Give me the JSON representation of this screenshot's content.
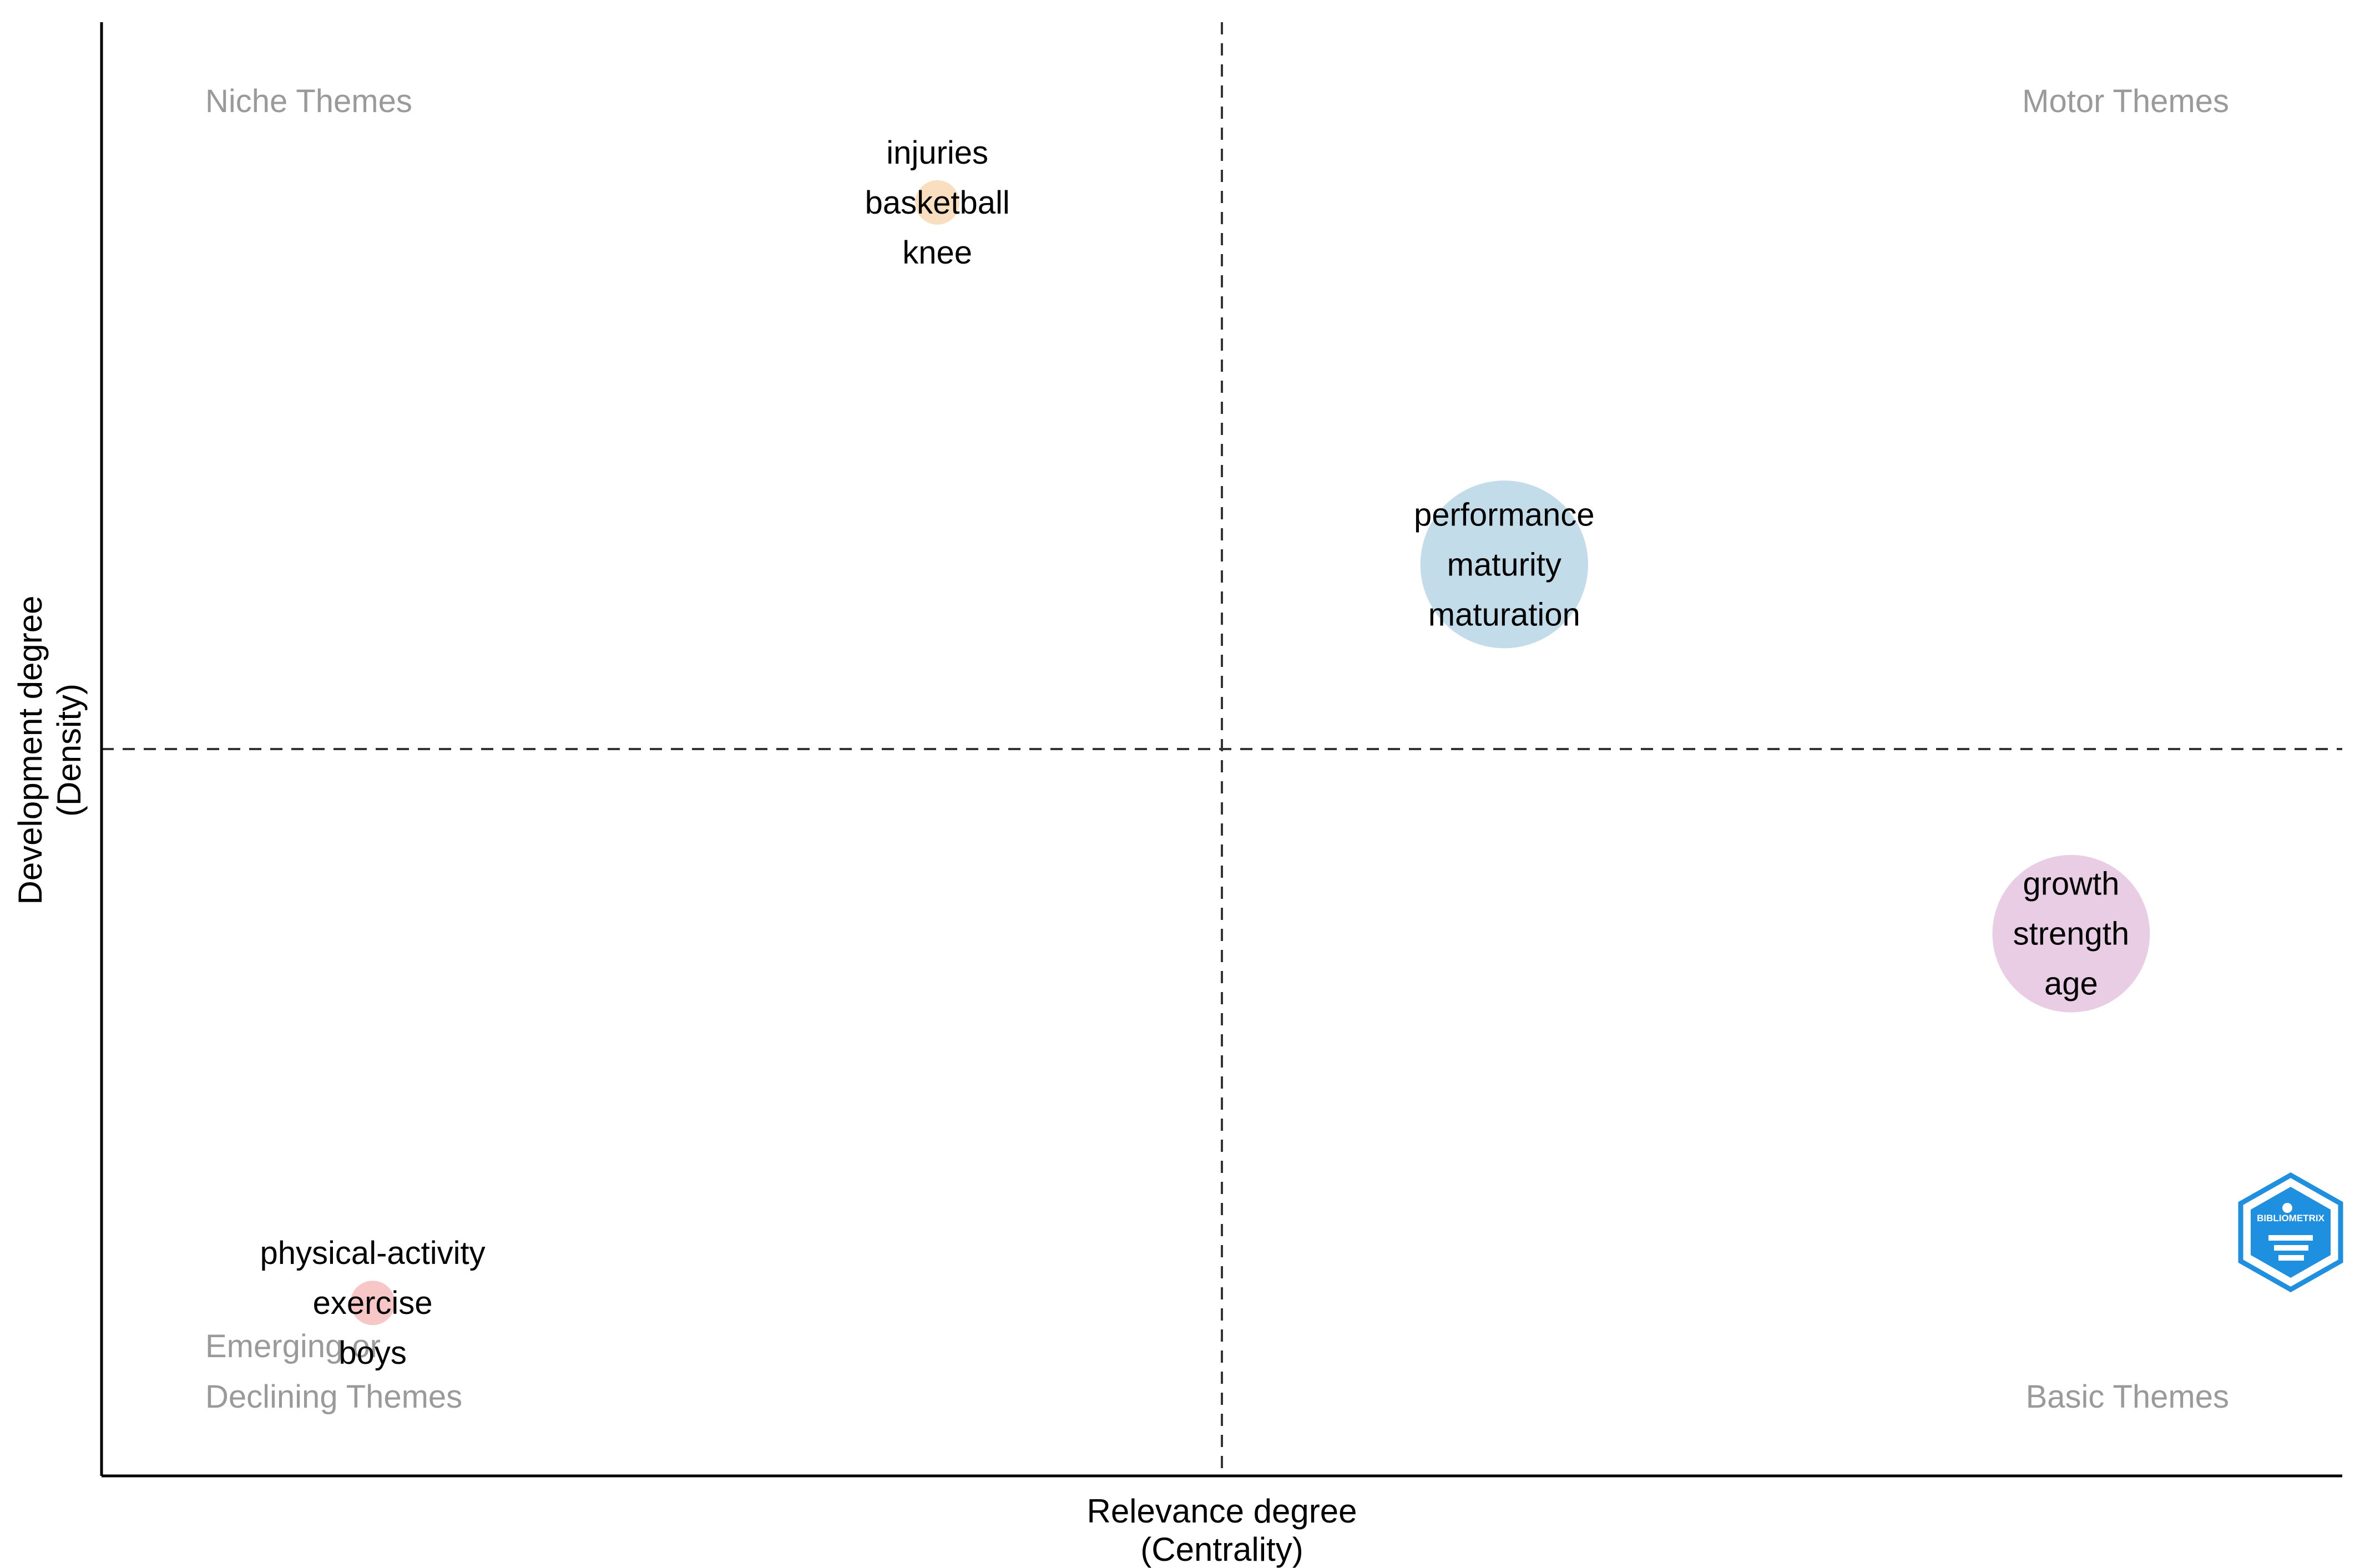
{
  "chart_data": {
    "type": "scatter",
    "subtype": "thematic-map",
    "xlabel": [
      "Relevance degree",
      "(Centrality)"
    ],
    "ylabel": [
      "Development degree",
      "(Density)"
    ],
    "xlim": [
      0,
      1
    ],
    "ylim": [
      0,
      1
    ],
    "x_divider": 0.5,
    "y_divider": 0.5,
    "grid": false,
    "quadrant_labels": {
      "top_left": "Niche Themes",
      "top_right": "Motor Themes",
      "bottom_left": [
        "Emerging or",
        "Declining Themes"
      ],
      "bottom_right": "Basic Themes"
    },
    "clusters": [
      {
        "x": 0.373,
        "y": 0.876,
        "size": 4,
        "color": "#f9dfc0",
        "keywords": [
          "injuries",
          "basketball",
          "knee"
        ]
      },
      {
        "x": 0.626,
        "y": 0.627,
        "size": 80,
        "color": "#c2dcea",
        "keywords": [
          "performance",
          "maturity",
          "maturation"
        ]
      },
      {
        "x": 0.879,
        "y": 0.373,
        "size": 70,
        "color": "#e8cde5",
        "keywords": [
          "growth",
          "strength",
          "age"
        ]
      },
      {
        "x": 0.121,
        "y": 0.119,
        "size": 4,
        "color": "#f7c6c6",
        "keywords": [
          "physical-activity",
          "exercise",
          "boys"
        ]
      }
    ],
    "logo": {
      "name": "bibliometrix-logo-icon",
      "text": "BIBLIOMETRIX",
      "color": "#1f8fe0"
    }
  }
}
